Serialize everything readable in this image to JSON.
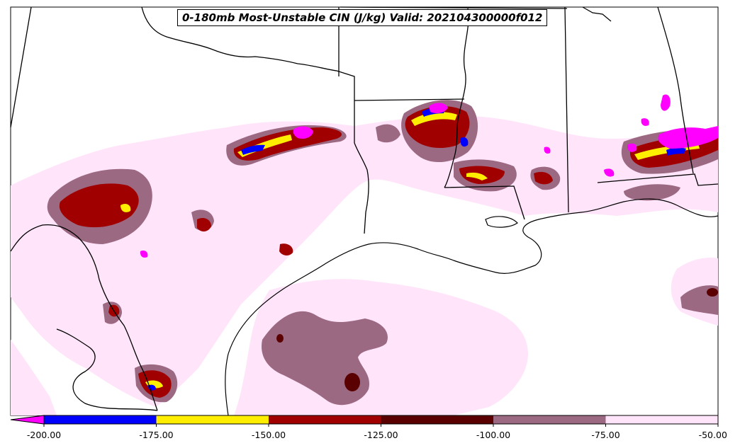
{
  "title": "0-180mb Most-Unstable CIN (J/kg) Valid: 202104300000f012",
  "colorbar": {
    "ticks": [
      "-200.00",
      "-175.00",
      "-150.00",
      "-125.00",
      "-100.00",
      "-75.00",
      "-50.00"
    ],
    "under_color": "#ff00ff",
    "bins": [
      {
        "from": -200,
        "to": -175,
        "color": "#0000ff"
      },
      {
        "from": -175,
        "to": -150,
        "color": "#ffee00"
      },
      {
        "from": -150,
        "to": -125,
        "color": "#a00000"
      },
      {
        "from": -125,
        "to": -100,
        "color": "#5a0000"
      },
      {
        "from": -100,
        "to": -75,
        "color": "#9c6982"
      },
      {
        "from": -75,
        "to": -50,
        "color": "#ffe4fa"
      }
    ]
  }
}
